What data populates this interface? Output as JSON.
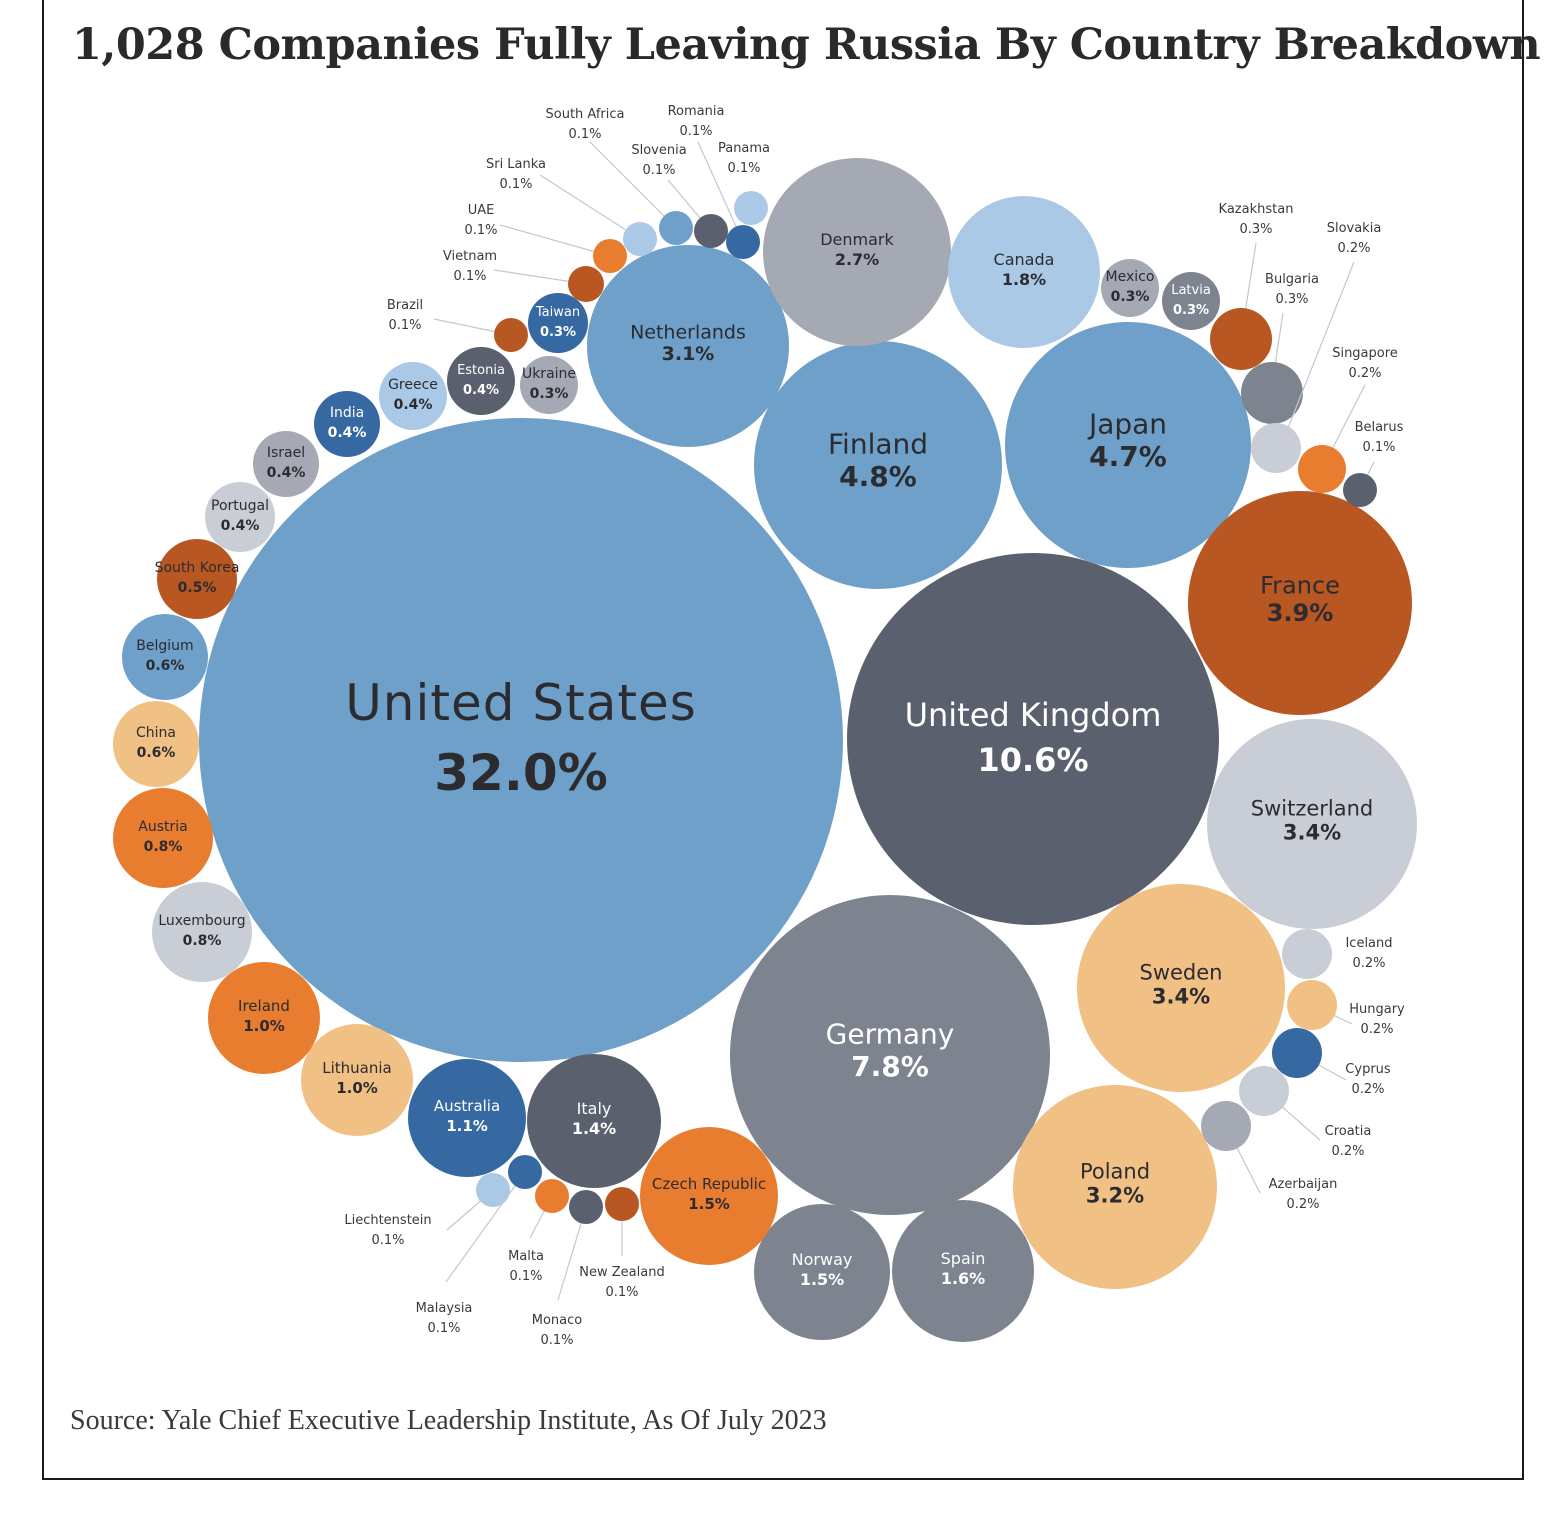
{
  "title": "1,028 Companies Fully Leaving Russia By Country Breakdown",
  "source": "Source: Yale Chief Executive Leadership Institute, As Of July 2023",
  "colors": {
    "steel_blue": "#6fa0c9",
    "dark_slate": "#5a606d",
    "medium_gray": "#7e848f",
    "light_gray": "#c9cdd5",
    "gray": "#a4a9b3",
    "light_blue": "#a9c9e6",
    "dark_blue": "#3669a1",
    "orange": "#e97d2f",
    "burnt_orange": "#b85722",
    "peach": "#f1c084"
  },
  "chart_data": {
    "type": "bubble",
    "title": "1,028 Companies Fully Leaving Russia By Country Breakdown",
    "unit": "% of companies",
    "series": [
      {
        "label": "United States",
        "value": "32.0%",
        "share": 32.0
      },
      {
        "label": "United Kingdom",
        "value": "10.6%",
        "share": 10.6
      },
      {
        "label": "Germany",
        "value": "7.8%",
        "share": 7.8
      },
      {
        "label": "Finland",
        "value": "4.8%",
        "share": 4.8
      },
      {
        "label": "Japan",
        "value": "4.7%",
        "share": 4.7
      },
      {
        "label": "France",
        "value": "3.9%",
        "share": 3.9
      },
      {
        "label": "Switzerland",
        "value": "3.4%",
        "share": 3.4
      },
      {
        "label": "Sweden",
        "value": "3.4%",
        "share": 3.4
      },
      {
        "label": "Poland",
        "value": "3.2%",
        "share": 3.2
      },
      {
        "label": "Netherlands",
        "value": "3.1%",
        "share": 3.1
      },
      {
        "label": "Denmark",
        "value": "2.7%",
        "share": 2.7
      },
      {
        "label": "Canada",
        "value": "1.8%",
        "share": 1.8
      },
      {
        "label": "Spain",
        "value": "1.6%",
        "share": 1.6
      },
      {
        "label": "Norway",
        "value": "1.5%",
        "share": 1.5
      },
      {
        "label": "Czech Republic",
        "value": "1.5%",
        "share": 1.5
      },
      {
        "label": "Italy",
        "value": "1.4%",
        "share": 1.4
      },
      {
        "label": "Australia",
        "value": "1.1%",
        "share": 1.1
      },
      {
        "label": "Lithuania",
        "value": "1.0%",
        "share": 1.0
      },
      {
        "label": "Ireland",
        "value": "1.0%",
        "share": 1.0
      },
      {
        "label": "Luxembourg",
        "value": "0.8%",
        "share": 0.8
      },
      {
        "label": "Austria",
        "value": "0.8%",
        "share": 0.8
      },
      {
        "label": "China",
        "value": "0.6%",
        "share": 0.6
      },
      {
        "label": "Belgium",
        "value": "0.6%",
        "share": 0.6
      },
      {
        "label": "South Korea",
        "value": "0.5%",
        "share": 0.5
      },
      {
        "label": "Portugal",
        "value": "0.4%",
        "share": 0.4
      },
      {
        "label": "Israel",
        "value": "0.4%",
        "share": 0.4
      },
      {
        "label": "India",
        "value": "0.4%",
        "share": 0.4
      },
      {
        "label": "Greece",
        "value": "0.4%",
        "share": 0.4
      },
      {
        "label": "Estonia",
        "value": "0.4%",
        "share": 0.4
      },
      {
        "label": "Ukraine",
        "value": "0.3%",
        "share": 0.3
      },
      {
        "label": "Taiwan",
        "value": "0.3%",
        "share": 0.3
      },
      {
        "label": "Mexico",
        "value": "0.3%",
        "share": 0.3
      },
      {
        "label": "Latvia",
        "value": "0.3%",
        "share": 0.3
      },
      {
        "label": "Kazakhstan",
        "value": "0.3%",
        "share": 0.3
      },
      {
        "label": "Bulgaria",
        "value": "0.3%",
        "share": 0.3
      },
      {
        "label": "Slovakia",
        "value": "0.2%",
        "share": 0.2
      },
      {
        "label": "Singapore",
        "value": "0.2%",
        "share": 0.2
      },
      {
        "label": "Iceland",
        "value": "0.2%",
        "share": 0.2
      },
      {
        "label": "Hungary",
        "value": "0.2%",
        "share": 0.2
      },
      {
        "label": "Cyprus",
        "value": "0.2%",
        "share": 0.2
      },
      {
        "label": "Croatia",
        "value": "0.2%",
        "share": 0.2
      },
      {
        "label": "Azerbaijan",
        "value": "0.2%",
        "share": 0.2
      },
      {
        "label": "Belarus",
        "value": "0.1%",
        "share": 0.1
      },
      {
        "label": "Brazil",
        "value": "0.1%",
        "share": 0.1
      },
      {
        "label": "Vietnam",
        "value": "0.1%",
        "share": 0.1
      },
      {
        "label": "UAE",
        "value": "0.1%",
        "share": 0.1
      },
      {
        "label": "Sri Lanka",
        "value": "0.1%",
        "share": 0.1
      },
      {
        "label": "South Africa",
        "value": "0.1%",
        "share": 0.1
      },
      {
        "label": "Slovenia",
        "value": "0.1%",
        "share": 0.1
      },
      {
        "label": "Romania",
        "value": "0.1%",
        "share": 0.1
      },
      {
        "label": "Panama",
        "value": "0.1%",
        "share": 0.1
      },
      {
        "label": "Liechtenstein",
        "value": "0.1%",
        "share": 0.1
      },
      {
        "label": "Malaysia",
        "value": "0.1%",
        "share": 0.1
      },
      {
        "label": "Malta",
        "value": "0.1%",
        "share": 0.1
      },
      {
        "label": "Monaco",
        "value": "0.1%",
        "share": 0.1
      },
      {
        "label": "New Zealand",
        "value": "0.1%",
        "share": 0.1
      }
    ]
  }
}
